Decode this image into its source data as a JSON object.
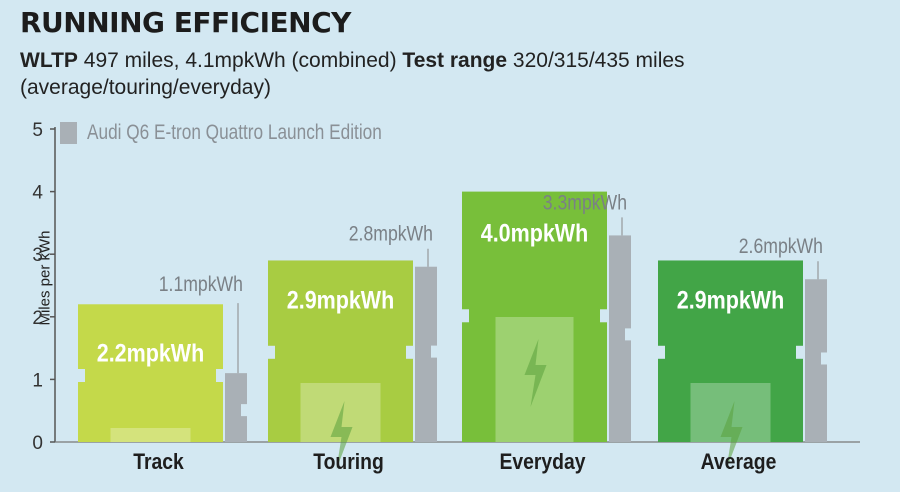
{
  "header": {
    "title": "RUNNING EFFICIENCY",
    "wltp_label": "WLTP",
    "wltp_text": "497 miles, 4.1mpkWh (combined)",
    "test_label": "Test range",
    "test_text": "320/315/435 miles (average/touring/everyday)"
  },
  "colors": {
    "background": "#d3e8f2",
    "comparison": "#a9b0b6",
    "track": "#c4d94a",
    "touring": "#a8cc42",
    "everyday": "#78bf3a",
    "average": "#42a547"
  },
  "chart_data": {
    "type": "bar",
    "ylabel": "Miles per kWh",
    "ylim": [
      0,
      5
    ],
    "yticks": [
      0,
      1,
      2,
      3,
      4,
      5
    ],
    "categories": [
      "Track",
      "Touring",
      "Everyday",
      "Average"
    ],
    "series": [
      {
        "name": "",
        "values": [
          2.2,
          2.9,
          4.0,
          2.9
        ],
        "labels": [
          "2.2mpkWh",
          "2.9mpkWh",
          "4.0mpkWh",
          "2.9mpkWh"
        ]
      },
      {
        "name": "Audi Q6 E-tron Quattro Launch Edition",
        "values": [
          1.1,
          2.8,
          3.3,
          2.6
        ],
        "labels": [
          "1.1mpkWh",
          "2.8mpkWh",
          "3.3mpkWh",
          "2.6mpkWh"
        ]
      }
    ],
    "legend_position": "top-left",
    "grid": false
  }
}
